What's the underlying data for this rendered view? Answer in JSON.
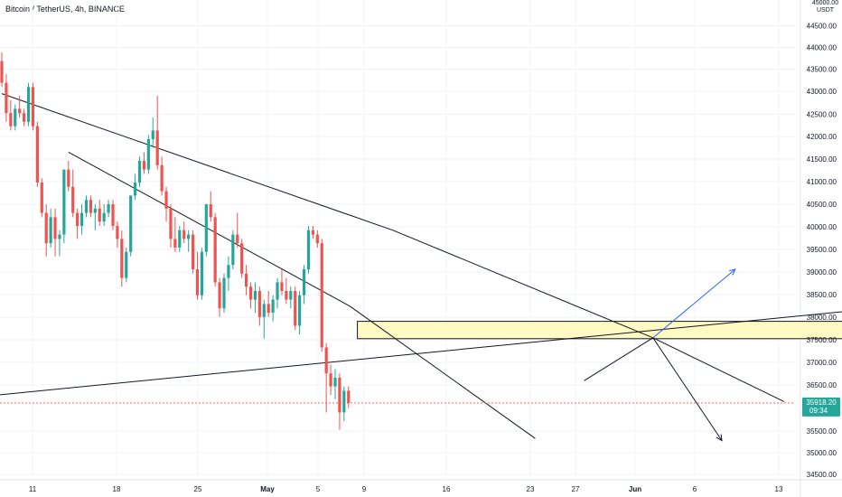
{
  "header": {
    "title": "Bitcoin / TetherUS, 4h, BINANCE",
    "unit_top": "45000.00",
    "unit": "USDT"
  },
  "colors": {
    "up": "#26a69a",
    "down": "#ef5350",
    "grid": "#f0f3fa",
    "line": "#131722",
    "zone_fill": "#fff9c4",
    "arrow_blue": "#2962ff",
    "last_price": "#26a69a"
  },
  "chart_data": {
    "type": "candlestick",
    "symbol": "Bitcoin / TetherUS",
    "interval": "4h",
    "exchange": "BINANCE",
    "y_ticks": [
      "44500.00",
      "44000.00",
      "43500.00",
      "43000.00",
      "42500.00",
      "42000.00",
      "41500.00",
      "41000.00",
      "40500.00",
      "40000.00",
      "39500.00",
      "39000.00",
      "38500.00",
      "38000.00",
      "37500.00",
      "37000.00",
      "36500.00",
      "35500.00",
      "35000.00",
      "34500.00"
    ],
    "x_ticks": [
      "11",
      "18",
      "25",
      "May",
      "5",
      "9",
      "16",
      "23",
      "27",
      "Jun",
      "6",
      "13"
    ],
    "ylim": [
      34300,
      45100
    ],
    "last_price": "35918.20",
    "countdown": "09:34",
    "candles": [
      {
        "o": 43800,
        "h": 44000,
        "l": 43200,
        "c": 43300
      },
      {
        "o": 43300,
        "h": 43500,
        "l": 42400,
        "c": 42600
      },
      {
        "o": 42600,
        "h": 42900,
        "l": 42200,
        "c": 42300
      },
      {
        "o": 42300,
        "h": 42800,
        "l": 42200,
        "c": 42700
      },
      {
        "o": 42700,
        "h": 43000,
        "l": 42500,
        "c": 42600
      },
      {
        "o": 42600,
        "h": 42700,
        "l": 42300,
        "c": 42400
      },
      {
        "o": 42400,
        "h": 43300,
        "l": 42300,
        "c": 43200
      },
      {
        "o": 43200,
        "h": 43300,
        "l": 42200,
        "c": 42300
      },
      {
        "o": 42300,
        "h": 42400,
        "l": 40900,
        "c": 41000
      },
      {
        "o": 41000,
        "h": 41100,
        "l": 40200,
        "c": 40300
      },
      {
        "o": 40300,
        "h": 40500,
        "l": 39300,
        "c": 39600
      },
      {
        "o": 39600,
        "h": 40400,
        "l": 39500,
        "c": 40200
      },
      {
        "o": 40200,
        "h": 40400,
        "l": 39300,
        "c": 39700
      },
      {
        "o": 39700,
        "h": 39900,
        "l": 39300,
        "c": 39800
      },
      {
        "o": 39800,
        "h": 41300,
        "l": 39600,
        "c": 41300
      },
      {
        "o": 41300,
        "h": 41500,
        "l": 40800,
        "c": 40900
      },
      {
        "o": 40900,
        "h": 41300,
        "l": 40200,
        "c": 40300
      },
      {
        "o": 40300,
        "h": 40400,
        "l": 39700,
        "c": 40000
      },
      {
        "o": 40000,
        "h": 40500,
        "l": 39800,
        "c": 40300
      },
      {
        "o": 40300,
        "h": 40700,
        "l": 40200,
        "c": 40600
      },
      {
        "o": 40600,
        "h": 40700,
        "l": 40200,
        "c": 40300
      },
      {
        "o": 40300,
        "h": 40500,
        "l": 39900,
        "c": 40400
      },
      {
        "o": 40400,
        "h": 40600,
        "l": 40000,
        "c": 40100
      },
      {
        "o": 40100,
        "h": 40500,
        "l": 40000,
        "c": 40300
      },
      {
        "o": 40300,
        "h": 40600,
        "l": 40200,
        "c": 40500
      },
      {
        "o": 40500,
        "h": 40600,
        "l": 39900,
        "c": 40000
      },
      {
        "o": 40000,
        "h": 40100,
        "l": 39500,
        "c": 39700
      },
      {
        "o": 39700,
        "h": 39900,
        "l": 38600,
        "c": 38800
      },
      {
        "o": 38800,
        "h": 39500,
        "l": 38700,
        "c": 39400
      },
      {
        "o": 39400,
        "h": 40700,
        "l": 39300,
        "c": 40700
      },
      {
        "o": 40700,
        "h": 41200,
        "l": 40600,
        "c": 41000
      },
      {
        "o": 41000,
        "h": 41600,
        "l": 40900,
        "c": 41500
      },
      {
        "o": 41500,
        "h": 41700,
        "l": 41200,
        "c": 41300
      },
      {
        "o": 41300,
        "h": 42100,
        "l": 41200,
        "c": 42000
      },
      {
        "o": 42000,
        "h": 42500,
        "l": 41800,
        "c": 42200
      },
      {
        "o": 42200,
        "h": 43000,
        "l": 41300,
        "c": 41400
      },
      {
        "o": 41400,
        "h": 41600,
        "l": 40700,
        "c": 40800
      },
      {
        "o": 40800,
        "h": 40900,
        "l": 40100,
        "c": 40400
      },
      {
        "o": 40400,
        "h": 40500,
        "l": 39500,
        "c": 39700
      },
      {
        "o": 39700,
        "h": 40200,
        "l": 39400,
        "c": 39500
      },
      {
        "o": 39500,
        "h": 40000,
        "l": 39400,
        "c": 39900
      },
      {
        "o": 39900,
        "h": 40100,
        "l": 39600,
        "c": 39700
      },
      {
        "o": 39700,
        "h": 39900,
        "l": 39400,
        "c": 39800
      },
      {
        "o": 39800,
        "h": 39900,
        "l": 38900,
        "c": 39000
      },
      {
        "o": 39000,
        "h": 39400,
        "l": 38300,
        "c": 38400
      },
      {
        "o": 38400,
        "h": 39500,
        "l": 38300,
        "c": 39400
      },
      {
        "o": 39400,
        "h": 40500,
        "l": 39300,
        "c": 40500
      },
      {
        "o": 40500,
        "h": 40800,
        "l": 40100,
        "c": 40200
      },
      {
        "o": 40200,
        "h": 40300,
        "l": 38600,
        "c": 38700
      },
      {
        "o": 38700,
        "h": 38800,
        "l": 37900,
        "c": 38100
      },
      {
        "o": 38100,
        "h": 38900,
        "l": 38000,
        "c": 38800
      },
      {
        "o": 38800,
        "h": 39300,
        "l": 38500,
        "c": 39100
      },
      {
        "o": 39100,
        "h": 39900,
        "l": 39000,
        "c": 39800
      },
      {
        "o": 39800,
        "h": 40300,
        "l": 39500,
        "c": 39600
      },
      {
        "o": 39600,
        "h": 39700,
        "l": 38800,
        "c": 38900
      },
      {
        "o": 38900,
        "h": 39100,
        "l": 38400,
        "c": 38600
      },
      {
        "o": 38600,
        "h": 38700,
        "l": 38100,
        "c": 38300
      },
      {
        "o": 38300,
        "h": 38700,
        "l": 38000,
        "c": 38500
      },
      {
        "o": 38500,
        "h": 38600,
        "l": 37700,
        "c": 37900
      },
      {
        "o": 37900,
        "h": 38300,
        "l": 37400,
        "c": 38200
      },
      {
        "o": 38200,
        "h": 38500,
        "l": 37900,
        "c": 38000
      },
      {
        "o": 38000,
        "h": 38400,
        "l": 37800,
        "c": 38300
      },
      {
        "o": 38300,
        "h": 38800,
        "l": 38100,
        "c": 38700
      },
      {
        "o": 38700,
        "h": 39000,
        "l": 38400,
        "c": 38500
      },
      {
        "o": 38500,
        "h": 38800,
        "l": 38200,
        "c": 38300
      },
      {
        "o": 38300,
        "h": 38600,
        "l": 38100,
        "c": 38500
      },
      {
        "o": 38500,
        "h": 38600,
        "l": 37600,
        "c": 37700
      },
      {
        "o": 37700,
        "h": 38500,
        "l": 37500,
        "c": 38400
      },
      {
        "o": 38400,
        "h": 39100,
        "l": 38200,
        "c": 39000
      },
      {
        "o": 39000,
        "h": 40000,
        "l": 38900,
        "c": 39900
      },
      {
        "o": 39900,
        "h": 40000,
        "l": 39700,
        "c": 39800
      },
      {
        "o": 39800,
        "h": 39900,
        "l": 39500,
        "c": 39600
      },
      {
        "o": 39600,
        "h": 39700,
        "l": 37100,
        "c": 37200
      },
      {
        "o": 37200,
        "h": 37300,
        "l": 35700,
        "c": 36600
      },
      {
        "o": 36600,
        "h": 36800,
        "l": 36100,
        "c": 36300
      },
      {
        "o": 36300,
        "h": 36700,
        "l": 36000,
        "c": 36500
      },
      {
        "o": 36500,
        "h": 36600,
        "l": 35300,
        "c": 35700
      },
      {
        "o": 35700,
        "h": 36300,
        "l": 35500,
        "c": 36200
      },
      {
        "o": 36200,
        "h": 36300,
        "l": 35800,
        "c": 35918
      }
    ],
    "annotations": {
      "trend_upper": [
        [
          0,
          43050
        ],
        [
          88,
          39900
        ],
        [
          146.5,
          37420
        ],
        [
          176,
          35950
        ]
      ],
      "trend_lower": [
        [
          15,
          41700
        ],
        [
          78.3,
          38150
        ],
        [
          120,
          35100
        ]
      ],
      "rising_line": [
        [
          -1,
          36100
        ],
        [
          266,
          38800
        ]
      ],
      "zone": {
        "i1": 80,
        "i2": 216,
        "y1": 37400,
        "y2": 37800
      },
      "ray_up_blue": [
        [
          146.5,
          37420
        ],
        [
          165,
          39000
        ]
      ],
      "ray_left": [
        [
          146.5,
          37420
        ],
        [
          131,
          36430
        ]
      ],
      "ray_down": [
        [
          146.5,
          37420
        ],
        [
          162,
          35050
        ]
      ],
      "arrow_low": [
        [
          146.5,
          37420
        ],
        [
          162,
          35050
        ]
      ]
    }
  }
}
